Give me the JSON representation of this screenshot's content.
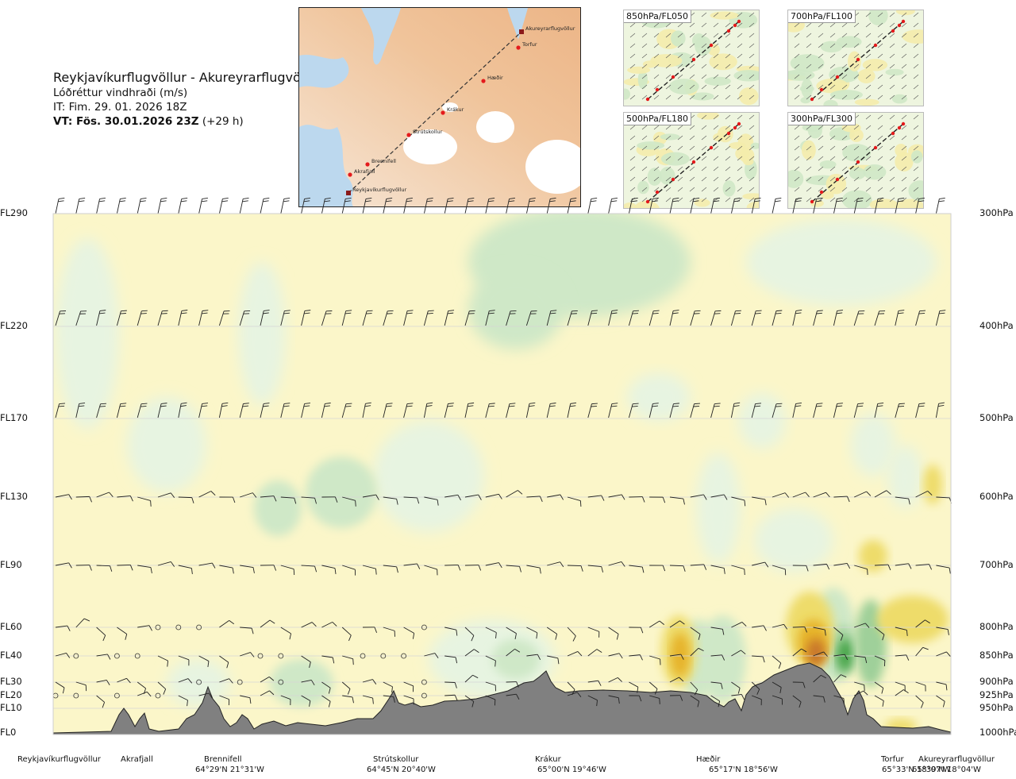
{
  "header": {
    "title": "Reykjavíkurflugvöllur - Akureyrarflugvöllur",
    "subtitle": "Lóðréttur vindhraði (m/s)",
    "issue_time": "IT: Fim. 29. 01. 2026 18Z",
    "valid_lead": "VT: Fös. 30.01.2026 23Z",
    "valid_offset": "(+29 h)"
  },
  "route_map": {
    "waypoints": [
      {
        "name": "Akureyrarflugvöllur",
        "type": "airport"
      },
      {
        "name": "Torfur",
        "type": "point"
      },
      {
        "name": "Hæðir",
        "type": "point"
      },
      {
        "name": "Krákur",
        "type": "point"
      },
      {
        "name": "Strútskollur",
        "type": "point"
      },
      {
        "name": "Brennifell",
        "type": "point"
      },
      {
        "name": "Akrafjall",
        "type": "point"
      },
      {
        "name": "Reykjavíkurflugvöllur",
        "type": "airport"
      }
    ],
    "colors": {
      "land": "#f2c7a0",
      "sea": "#bcd8ee",
      "ice": "#ffffff",
      "route": "#333333",
      "point": "#e41a1c",
      "airport": "#8b1a1a"
    }
  },
  "level_maps": [
    {
      "label": "850hPa/FL050"
    },
    {
      "label": "700hPa/FL100"
    },
    {
      "label": "500hPa/FL180"
    },
    {
      "label": "300hPa/FL300"
    }
  ],
  "chart_data": {
    "type": "heatmap",
    "title": "Reykjavíkurflugvöllur - Akureyrarflugvöllur",
    "variable": "Lóðréttur vindhraði (m/s)",
    "levels": [
      {
        "fl": "FL290",
        "hpa": "300hPa"
      },
      {
        "fl": "FL220",
        "hpa": "400hPa"
      },
      {
        "fl": "FL170",
        "hpa": "500hPa"
      },
      {
        "fl": "FL130",
        "hpa": "600hPa"
      },
      {
        "fl": "FL90",
        "hpa": "700hPa"
      },
      {
        "fl": "FL60",
        "hpa": "800hPa"
      },
      {
        "fl": "FL40",
        "hpa": "850hPa"
      },
      {
        "fl": "FL30",
        "hpa": "900hPa"
      },
      {
        "fl": "FL20",
        "hpa": "925hPa"
      },
      {
        "fl": "FL10",
        "hpa": "950hPa"
      },
      {
        "fl": "FL0",
        "hpa": "1000hPa"
      }
    ],
    "stations": [
      {
        "name": "Reykjavíkurflugvöllur",
        "coord": "",
        "x": 0.0
      },
      {
        "name": "Akrafjall",
        "coord": "",
        "x": 0.086
      },
      {
        "name": "Brennifell",
        "coord": "64°29'N 21°31'W",
        "x": 0.18
      },
      {
        "name": "Strútskollur",
        "coord": "64°45'N 20°40'W",
        "x": 0.36
      },
      {
        "name": "Krákur",
        "coord": "65°00'N 19°46'W",
        "x": 0.53
      },
      {
        "name": "Hæðir",
        "coord": "65°17'N 18°56'W",
        "x": 0.71
      },
      {
        "name": "Torfur",
        "coord": "65°33'N 18°07'W",
        "x": 0.93
      },
      {
        "name": "Akureyrarflugvöllur",
        "coord": "65°39'N 18°04'W",
        "x": 1.0
      }
    ],
    "colors": {
      "down_weak": "#fbf6c9",
      "down": "#f2e8a6",
      "down_mod": "#eedc6a",
      "down_strong": "#e6b32a",
      "down_vstrong": "#c9782a",
      "up_weak": "#e7f4e1",
      "up": "#cfe8c7",
      "up_mod": "#9fd09a",
      "up_strong": "#4aa64c",
      "up_vstrong": "#1e7a2a",
      "terrain": "#808080"
    }
  }
}
